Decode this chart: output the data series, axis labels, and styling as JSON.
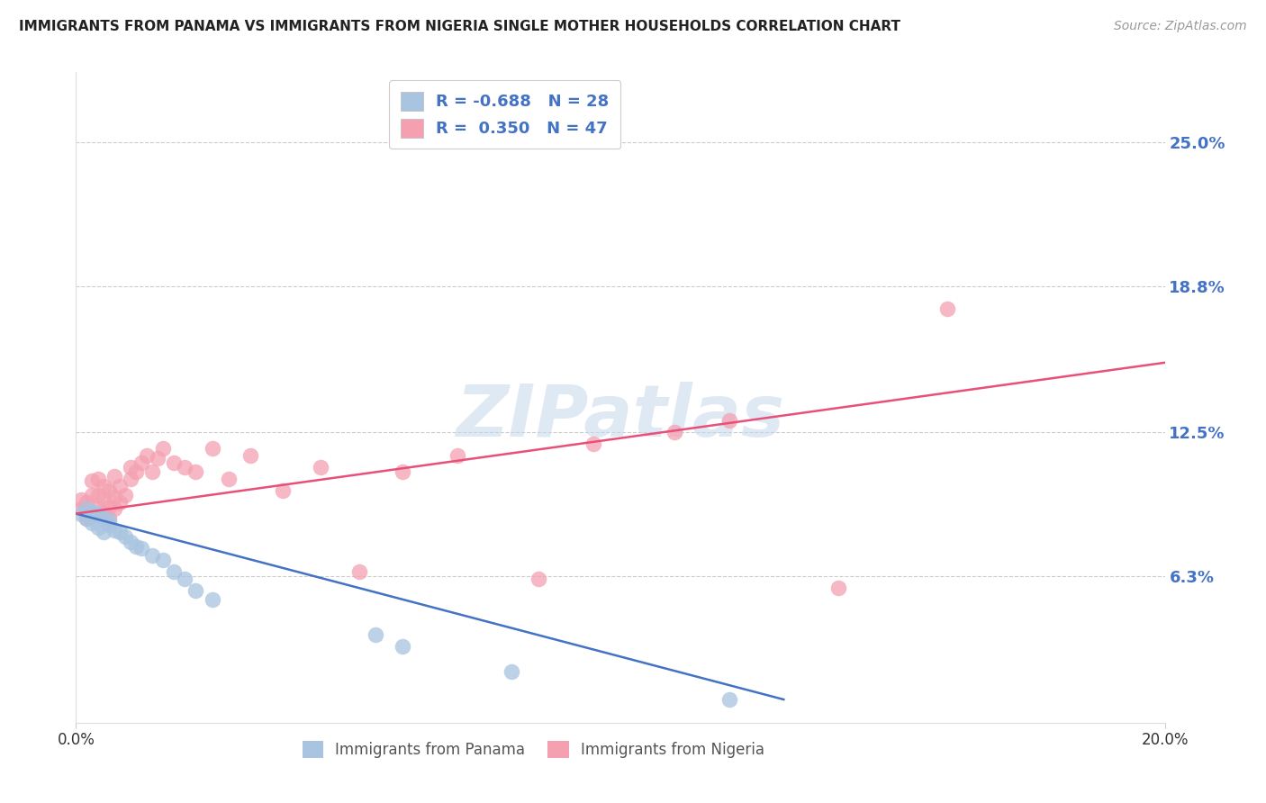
{
  "title": "IMMIGRANTS FROM PANAMA VS IMMIGRANTS FROM NIGERIA SINGLE MOTHER HOUSEHOLDS CORRELATION CHART",
  "source": "Source: ZipAtlas.com",
  "ylabel": "Single Mother Households",
  "xlim": [
    0.0,
    0.2
  ],
  "ylim": [
    0.0,
    0.28
  ],
  "ytick_labels_right": [
    "25.0%",
    "18.8%",
    "12.5%",
    "6.3%"
  ],
  "ytick_values_right": [
    0.25,
    0.188,
    0.125,
    0.063
  ],
  "panama_R": -0.688,
  "panama_N": 28,
  "nigeria_R": 0.35,
  "nigeria_N": 47,
  "panama_color": "#a8c4e0",
  "nigeria_color": "#f4a0b0",
  "panama_line_color": "#4472c4",
  "nigeria_line_color": "#e8507a",
  "watermark": "ZIPatlas",
  "panama_x": [
    0.001,
    0.002,
    0.002,
    0.003,
    0.003,
    0.003,
    0.004,
    0.004,
    0.005,
    0.005,
    0.006,
    0.006,
    0.007,
    0.008,
    0.009,
    0.01,
    0.011,
    0.012,
    0.014,
    0.016,
    0.018,
    0.02,
    0.022,
    0.025,
    0.055,
    0.06,
    0.08,
    0.12
  ],
  "panama_y": [
    0.09,
    0.092,
    0.088,
    0.089,
    0.091,
    0.086,
    0.084,
    0.09,
    0.088,
    0.082,
    0.085,
    0.087,
    0.083,
    0.082,
    0.08,
    0.078,
    0.076,
    0.075,
    0.072,
    0.07,
    0.065,
    0.062,
    0.057,
    0.053,
    0.038,
    0.033,
    0.022,
    0.01
  ],
  "nigeria_x": [
    0.001,
    0.001,
    0.002,
    0.002,
    0.003,
    0.003,
    0.003,
    0.004,
    0.004,
    0.004,
    0.005,
    0.005,
    0.005,
    0.006,
    0.006,
    0.006,
    0.007,
    0.007,
    0.007,
    0.008,
    0.008,
    0.009,
    0.01,
    0.01,
    0.011,
    0.012,
    0.013,
    0.014,
    0.015,
    0.016,
    0.018,
    0.02,
    0.022,
    0.025,
    0.028,
    0.032,
    0.038,
    0.045,
    0.052,
    0.06,
    0.07,
    0.085,
    0.095,
    0.11,
    0.12,
    0.14,
    0.16
  ],
  "nigeria_y": [
    0.092,
    0.096,
    0.088,
    0.095,
    0.09,
    0.098,
    0.104,
    0.092,
    0.098,
    0.105,
    0.09,
    0.096,
    0.102,
    0.088,
    0.093,
    0.1,
    0.092,
    0.097,
    0.106,
    0.095,
    0.102,
    0.098,
    0.11,
    0.105,
    0.108,
    0.112,
    0.115,
    0.108,
    0.114,
    0.118,
    0.112,
    0.11,
    0.108,
    0.118,
    0.105,
    0.115,
    0.1,
    0.11,
    0.065,
    0.108,
    0.115,
    0.062,
    0.12,
    0.125,
    0.13,
    0.058,
    0.178
  ]
}
